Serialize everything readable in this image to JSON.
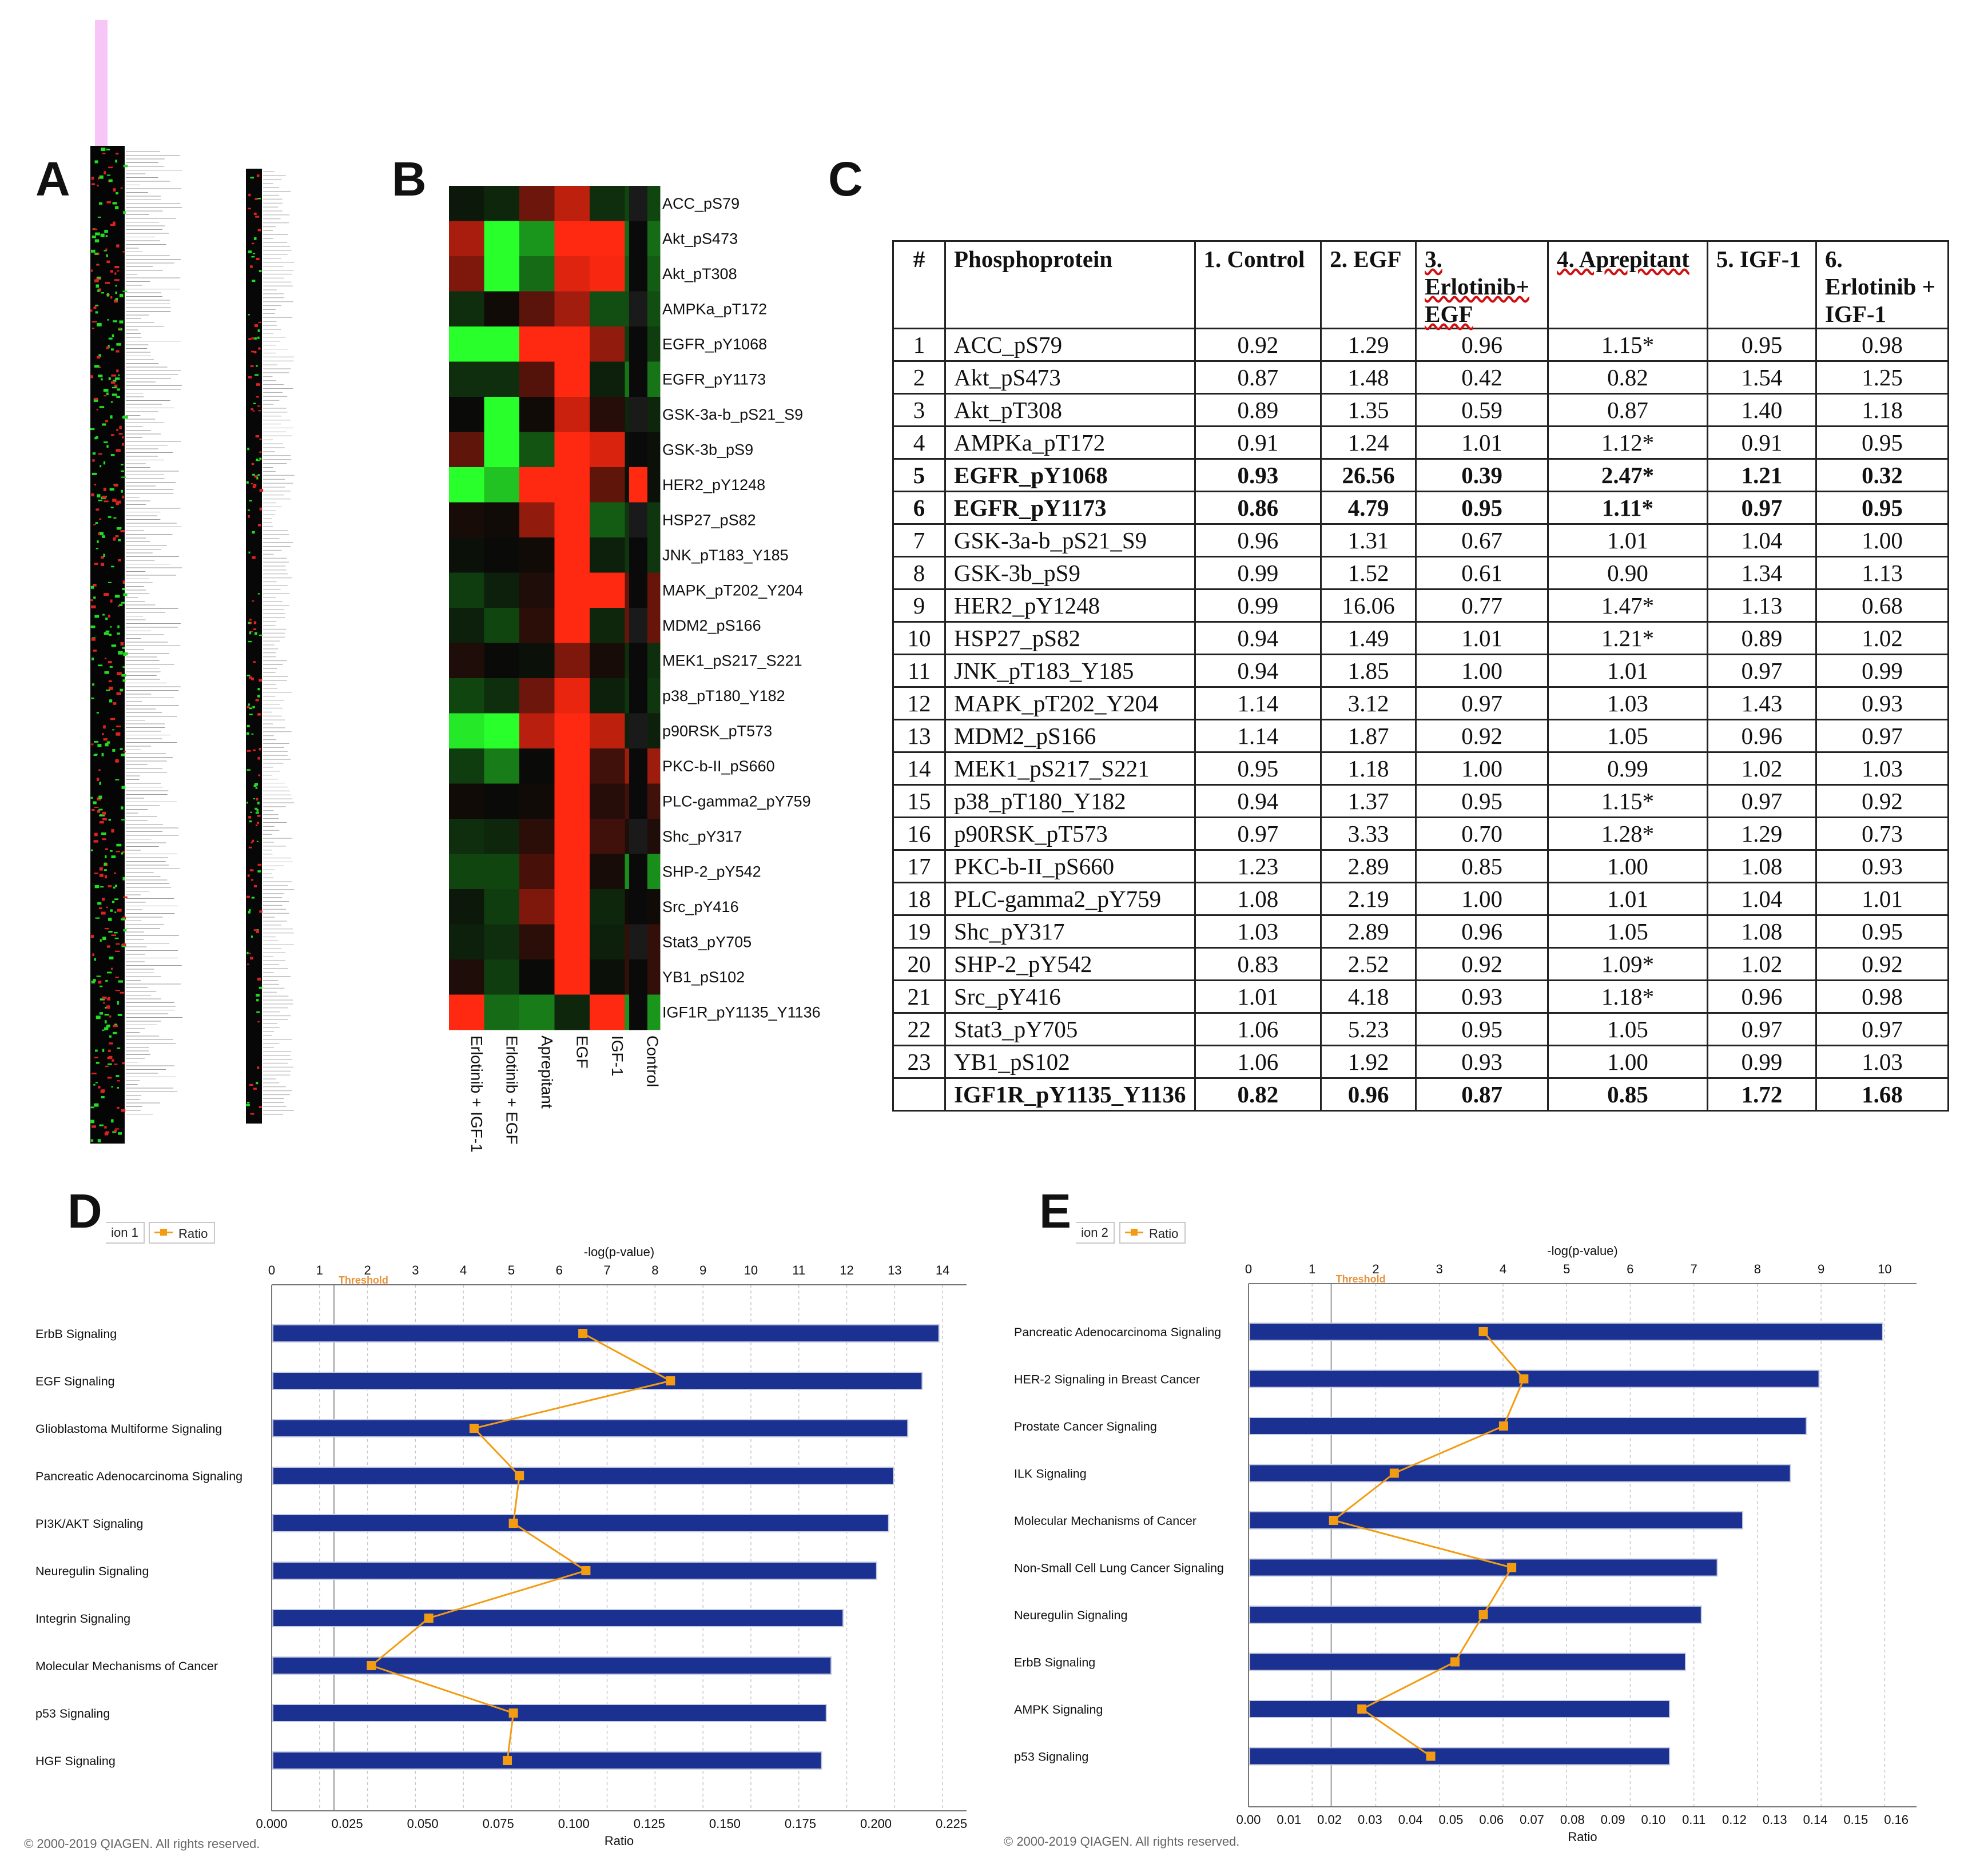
{
  "panels": {
    "a": "A",
    "b": "B",
    "c": "C",
    "d": "D",
    "e": "E"
  },
  "heatmap": {
    "rows": [
      "ACC_pS79",
      "Akt_pS473",
      "Akt_pT308",
      "AMPKa_pT172",
      "EGFR_pY1068",
      "EGFR_pY1173",
      "GSK-3a-b_pS21_S9",
      "GSK-3b_pS9",
      "HER2_pY1248",
      "HSP27_pS82",
      "JNK_pT183_Y185",
      "MAPK_pT202_Y204",
      "MDM2_pS166",
      "MEK1_pS217_S221",
      "p38_pT180_Y182",
      "p90RSK_pT573",
      "PKC-b-II_pS660",
      "PLC-gamma2_pY759",
      "Shc_pY317",
      "SHP-2_pY542",
      "Src_pY416",
      "Stat3_pY705",
      "YB1_pS102",
      "IGF1R_pY1135_Y1136"
    ],
    "columns": [
      "Erlotinib + IGF-1",
      "Erlotinib + EGF",
      "Aprepitant",
      "EGF",
      "IGF-1",
      "Control"
    ],
    "colors": {
      "red": "#ff2a10",
      "green": "#2bff2b",
      "black": "#050505"
    }
  },
  "table": {
    "headers": [
      "#",
      "Phosphoprotein",
      "1. Control",
      "2. EGF",
      "3. Erlotinib+ EGF",
      "4. Aprepitant",
      "5. IGF-1",
      "6. Erlotinib + IGF-1"
    ],
    "rows": [
      [
        "1",
        "ACC_pS79",
        "0.92",
        "1.29",
        "0.96",
        "1.15*",
        "0.95",
        "0.98"
      ],
      [
        "2",
        "Akt_pS473",
        "0.87",
        "1.48",
        "0.42",
        "0.82",
        "1.54",
        "1.25"
      ],
      [
        "3",
        "Akt_pT308",
        "0.89",
        "1.35",
        "0.59",
        "0.87",
        "1.40",
        "1.18"
      ],
      [
        "4",
        "AMPKa_pT172",
        "0.91",
        "1.24",
        "1.01",
        "1.12*",
        "0.91",
        "0.95"
      ],
      [
        "5",
        "EGFR_pY1068",
        "0.93",
        "26.56",
        "0.39",
        "2.47*",
        "1.21",
        "0.32"
      ],
      [
        "6",
        "EGFR_pY1173",
        "0.86",
        "4.79",
        "0.95",
        "1.11*",
        "0.97",
        "0.95"
      ],
      [
        "7",
        "GSK-3a-b_pS21_S9",
        "0.96",
        "1.31",
        "0.67",
        "1.01",
        "1.04",
        "1.00"
      ],
      [
        "8",
        "GSK-3b_pS9",
        "0.99",
        "1.52",
        "0.61",
        "0.90",
        "1.34",
        "1.13"
      ],
      [
        "9",
        "HER2_pY1248",
        "0.99",
        "16.06",
        "0.77",
        "1.47*",
        "1.13",
        "0.68"
      ],
      [
        "10",
        "HSP27_pS82",
        "0.94",
        "1.49",
        "1.01",
        "1.21*",
        "0.89",
        "1.02"
      ],
      [
        "11",
        "JNK_pT183_Y185",
        "0.94",
        "1.85",
        "1.00",
        "1.01",
        "0.97",
        "0.99"
      ],
      [
        "12",
        "MAPK_pT202_Y204",
        "1.14",
        "3.12",
        "0.97",
        "1.03",
        "1.43",
        "0.93"
      ],
      [
        "13",
        "MDM2_pS166",
        "1.14",
        "1.87",
        "0.92",
        "1.05",
        "0.96",
        "0.97"
      ],
      [
        "14",
        "MEK1_pS217_S221",
        "0.95",
        "1.18",
        "1.00",
        "0.99",
        "1.02",
        "1.03"
      ],
      [
        "15",
        "p38_pT180_Y182",
        "0.94",
        "1.37",
        "0.95",
        "1.15*",
        "0.97",
        "0.92"
      ],
      [
        "16",
        "p90RSK_pT573",
        "0.97",
        "3.33",
        "0.70",
        "1.28*",
        "1.29",
        "0.73"
      ],
      [
        "17",
        "PKC-b-II_pS660",
        "1.23",
        "2.89",
        "0.85",
        "1.00",
        "1.08",
        "0.93"
      ],
      [
        "18",
        "PLC-gamma2_pY759",
        "1.08",
        "2.19",
        "1.00",
        "1.01",
        "1.04",
        "1.01"
      ],
      [
        "19",
        "Shc_pY317",
        "1.03",
        "2.89",
        "0.96",
        "1.05",
        "1.08",
        "0.95"
      ],
      [
        "20",
        "SHP-2_pY542",
        "0.83",
        "2.52",
        "0.92",
        "1.09*",
        "1.02",
        "0.92"
      ],
      [
        "21",
        "Src_pY416",
        "1.01",
        "4.18",
        "0.93",
        "1.18*",
        "0.96",
        "0.98"
      ],
      [
        "22",
        "Stat3_pY705",
        "1.06",
        "5.23",
        "0.95",
        "1.05",
        "0.97",
        "0.97"
      ],
      [
        "23",
        "YB1_pS102",
        "1.06",
        "1.92",
        "0.93",
        "1.00",
        "0.99",
        "1.03"
      ],
      [
        "",
        "IGF1R_pY1135_Y1136",
        "0.82",
        "0.96",
        "0.87",
        "0.85",
        "1.72",
        "1.68"
      ]
    ]
  },
  "chart_data": [
    {
      "type": "bar",
      "title": "",
      "legend_label": "Ratio",
      "tab_label": "ion 1",
      "top_axis_label": "-log(p-value)",
      "bottom_axis_label": "Ratio",
      "threshold_label": "Threshold",
      "threshold_value": 1.3,
      "top_ticks": [
        "0",
        "1",
        "2",
        "3",
        "4",
        "5",
        "6",
        "7",
        "8",
        "9",
        "10",
        "11",
        "12",
        "13",
        "14"
      ],
      "bottom_ticks": [
        "0.000",
        "0.025",
        "0.050",
        "0.075",
        "0.100",
        "0.125",
        "0.150",
        "0.175",
        "0.200",
        "0.225"
      ],
      "top_range": [
        0,
        14.5
      ],
      "bottom_range": [
        0,
        0.23
      ],
      "categories": [
        "ErbB Signaling",
        "EGF Signaling",
        "Glioblastoma Multiforme Signaling",
        "Pancreatic Adenocarcinoma Signaling",
        "PI3K/AKT Signaling",
        "Neuregulin Signaling",
        "Integrin Signaling",
        "Molecular Mechanisms of Cancer",
        "p53 Signaling",
        "HGF Signaling"
      ],
      "series": [
        {
          "name": "-log(p-value)",
          "values": [
            13.9,
            13.55,
            13.25,
            12.95,
            12.85,
            12.6,
            11.9,
            11.65,
            11.55,
            11.45
          ]
        },
        {
          "name": "Ratio",
          "values": [
            0.103,
            0.132,
            0.067,
            0.082,
            0.08,
            0.104,
            0.052,
            0.033,
            0.08,
            0.078
          ]
        }
      ],
      "copyright": "© 2000-2019 QIAGEN. All rights reserved."
    },
    {
      "type": "bar",
      "title": "",
      "legend_label": "Ratio",
      "tab_label": "ion 2",
      "top_axis_label": "-log(p-value)",
      "bottom_axis_label": "Ratio",
      "threshold_label": "Threshold",
      "threshold_value": 1.3,
      "top_ticks": [
        "0",
        "1",
        "2",
        "3",
        "4",
        "5",
        "6",
        "7",
        "8",
        "9",
        "10"
      ],
      "bottom_ticks": [
        "0.00",
        "0.01",
        "0.02",
        "0.03",
        "0.04",
        "0.05",
        "0.06",
        "0.07",
        "0.08",
        "0.09",
        "0.10",
        "0.11",
        "0.12",
        "0.13",
        "0.14",
        "0.15",
        "0.16"
      ],
      "top_range": [
        0,
        10.5
      ],
      "bottom_range": [
        0,
        0.165
      ],
      "categories": [
        "Pancreatic Adenocarcinoma Signaling",
        "HER-2 Signaling in Breast Cancer",
        "Prostate Cancer Signaling",
        "ILK Signaling",
        "Molecular Mechanisms of Cancer",
        "Non-Small Cell Lung Cancer Signaling",
        "Neuregulin Signaling",
        "ErbB Signaling",
        "AMPK Signaling",
        "p53 Signaling"
      ],
      "series": [
        {
          "name": "-log(p-value)",
          "values": [
            9.95,
            8.95,
            8.75,
            8.5,
            7.75,
            7.35,
            7.1,
            6.85,
            6.6,
            6.6
          ]
        },
        {
          "name": "Ratio",
          "values": [
            0.058,
            0.068,
            0.063,
            0.036,
            0.021,
            0.065,
            0.058,
            0.051,
            0.028,
            0.045
          ]
        }
      ],
      "copyright": "© 2000-2019 QIAGEN. All rights reserved."
    }
  ]
}
